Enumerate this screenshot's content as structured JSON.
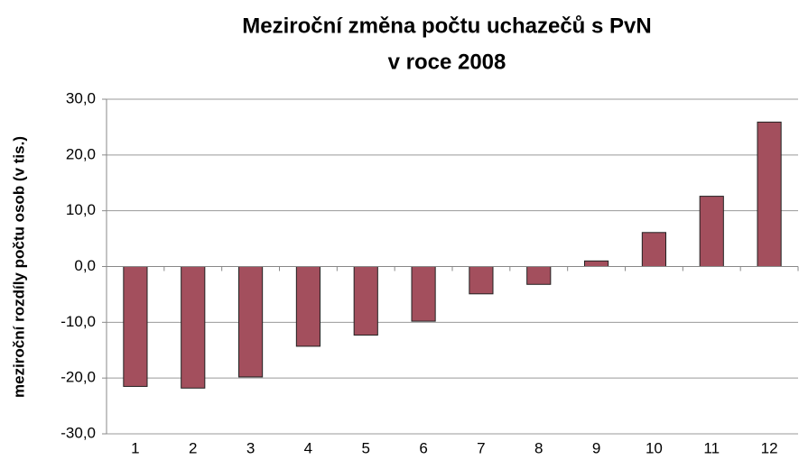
{
  "chart_data": {
    "type": "bar",
    "title": [
      "Meziroční změna počtu uchazečů s PvN",
      "v roce 2008"
    ],
    "y_label": "meziroční rozdíly počtu osob (v tis.)",
    "categories": [
      "1",
      "2",
      "3",
      "4",
      "5",
      "6",
      "7",
      "8",
      "9",
      "10",
      "11",
      "12"
    ],
    "values": [
      -21.5,
      -21.8,
      -19.8,
      -14.3,
      -12.3,
      -9.8,
      -4.9,
      -3.2,
      1.0,
      6.1,
      12.6,
      25.9
    ],
    "color": "#a34f5d",
    "ylim": [
      -30,
      30
    ],
    "yticks": [
      {
        "value": -30,
        "label": "-30,0"
      },
      {
        "value": -20,
        "label": "-20,0"
      },
      {
        "value": -10,
        "label": "-10,0"
      },
      {
        "value": 0,
        "label": "0,0"
      },
      {
        "value": 10,
        "label": "10,0"
      },
      {
        "value": 20,
        "label": "20,0"
      },
      {
        "value": 30,
        "label": "30,0"
      }
    ],
    "grid": true
  }
}
